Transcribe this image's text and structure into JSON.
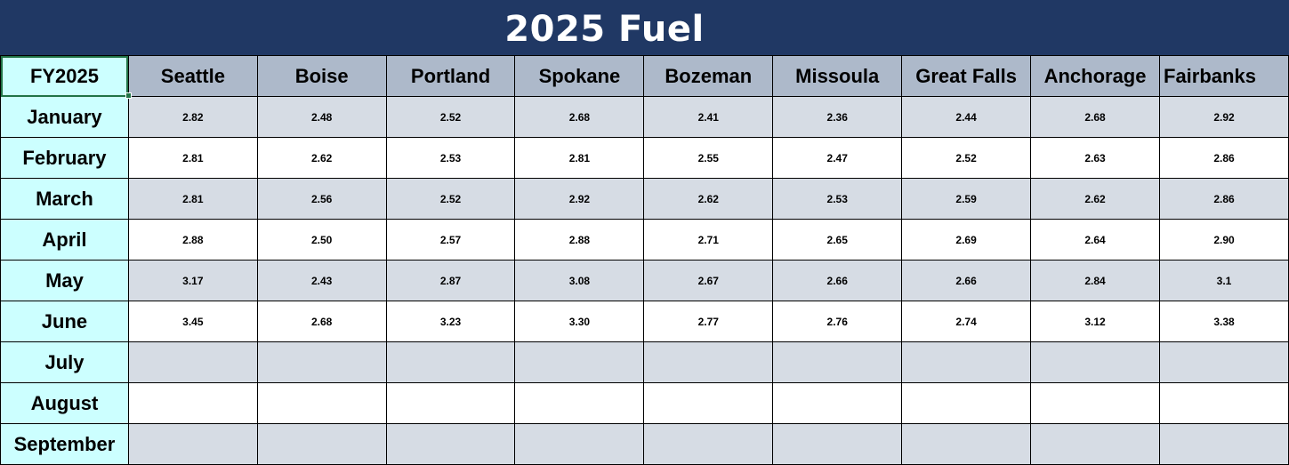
{
  "title": "2025 Fuel",
  "corner_label": "FY2025",
  "cities": [
    "Seattle",
    "Boise",
    "Portland",
    "Spokane",
    "Bozeman",
    "Missoula",
    "Great Falls",
    "Anchorage",
    "Fairbanks"
  ],
  "rows": [
    {
      "month": "January",
      "values": [
        "2.82",
        "2.48",
        "2.52",
        "2.68",
        "2.41",
        "2.36",
        "2.44",
        "2.68",
        "2.92"
      ]
    },
    {
      "month": "February",
      "values": [
        "2.81",
        "2.62",
        "2.53",
        "2.81",
        "2.55",
        "2.47",
        "2.52",
        "2.63",
        "2.86"
      ]
    },
    {
      "month": "March",
      "values": [
        "2.81",
        "2.56",
        "2.52",
        "2.92",
        "2.62",
        "2.53",
        "2.59",
        "2.62",
        "2.86"
      ]
    },
    {
      "month": "April",
      "values": [
        "2.88",
        "2.50",
        "2.57",
        "2.88",
        "2.71",
        "2.65",
        "2.69",
        "2.64",
        "2.90"
      ]
    },
    {
      "month": "May",
      "values": [
        "3.17",
        "2.43",
        "2.87",
        "3.08",
        "2.67",
        "2.66",
        "2.66",
        "2.84",
        "3.1"
      ]
    },
    {
      "month": "June",
      "values": [
        "3.45",
        "2.68",
        "3.23",
        "3.30",
        "2.77",
        "2.76",
        "2.74",
        "3.12",
        "3.38"
      ]
    },
    {
      "month": "July",
      "values": [
        "",
        "",
        "",
        "",
        "",
        "",
        "",
        "",
        ""
      ]
    },
    {
      "month": "August",
      "values": [
        "",
        "",
        "",
        "",
        "",
        "",
        "",
        "",
        ""
      ]
    },
    {
      "month": "September",
      "values": [
        "",
        "",
        "",
        "",
        "",
        "",
        "",
        "",
        ""
      ]
    }
  ],
  "colors": {
    "title_bg": "#203864",
    "header_bg": "#adb9ca",
    "month_bg": "#ccffff",
    "band_bg": "#d6dce4"
  }
}
